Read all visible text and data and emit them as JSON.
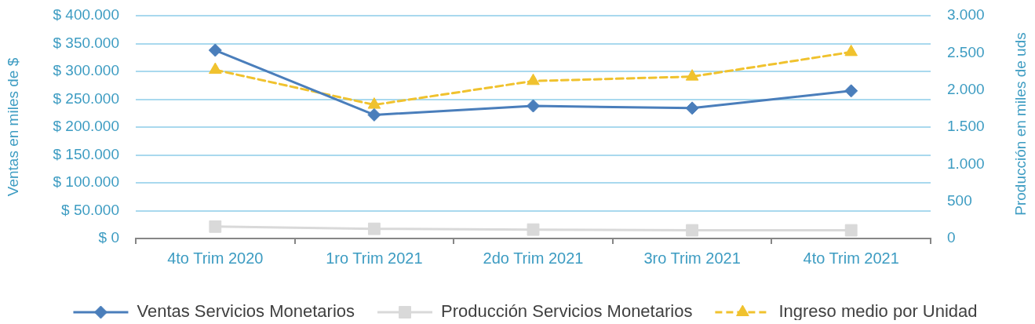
{
  "chart_data": {
    "type": "line",
    "categories": [
      "4to Trim 2020",
      "1ro Trim 2021",
      "2do Trim 2021",
      "3ro Trim 2021",
      "4to Trim 2021"
    ],
    "ylabel": "Ventas en miles de $",
    "y2label": "Producción en miles de uds",
    "ylim": [
      0,
      400000
    ],
    "yticks": [
      {
        "value": 0,
        "label": "$ 0"
      },
      {
        "value": 50000,
        "label": "$ 50.000"
      },
      {
        "value": 100000,
        "label": "$ 100.000"
      },
      {
        "value": 150000,
        "label": "$ 150.000"
      },
      {
        "value": 200000,
        "label": "$ 200.000"
      },
      {
        "value": 250000,
        "label": "$ 250.000"
      },
      {
        "value": 300000,
        "label": "$ 300.000"
      },
      {
        "value": 350000,
        "label": "$ 350.000"
      },
      {
        "value": 400000,
        "label": "$ 400.000"
      }
    ],
    "y2lim": [
      0,
      3000
    ],
    "y2ticks": [
      0,
      500,
      {
        "value": 1000,
        "label": "1.000"
      },
      {
        "value": 1500,
        "label": "1.500"
      },
      {
        "value": 2000,
        "label": "2.000"
      },
      {
        "value": 2500,
        "label": "2.500"
      },
      {
        "value": 3000,
        "label": "3.000"
      }
    ],
    "grid": "y",
    "legend": "bottom",
    "series": [
      {
        "name": "Ventas Servicios Monetarios",
        "color": "#4a7ebb",
        "marker": "diamond",
        "values": [
          338000,
          222000,
          238000,
          234000,
          265000
        ]
      },
      {
        "name": "Producción Servicios Monetarios",
        "color": "#d9d9d9",
        "marker": "square",
        "axis": "y2",
        "values": [
          160,
          130,
          120,
          110,
          110
        ]
      },
      {
        "name": "Ingreso medio por Unidad",
        "color": "#f0c22e",
        "marker": "triangle",
        "line_style": "dashed",
        "axis": "y2",
        "values": [
          2270,
          1800,
          2120,
          2180,
          2510
        ]
      }
    ]
  }
}
